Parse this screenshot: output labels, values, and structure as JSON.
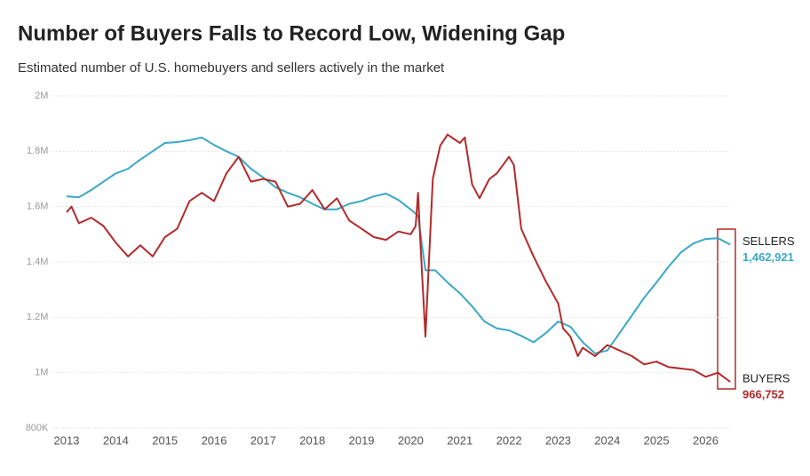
{
  "chart_data": {
    "type": "line",
    "title": "Number of Buyers Falls to Record Low, Widening Gap",
    "subtitle": "Estimated number of U.S. homebuyers and sellers actively in the market",
    "xlim": [
      2012.7,
      2026.75
    ],
    "xticks": [
      2013,
      2014,
      2015,
      2016,
      2017,
      2018,
      2019,
      2020,
      2021,
      2022,
      2023,
      2024,
      2025,
      2026
    ],
    "ylim": [
      800000,
      2000000
    ],
    "yticks": [
      {
        "value": 800000,
        "label": "800K"
      },
      {
        "value": 1000000,
        "label": "1M"
      },
      {
        "value": 1200000,
        "label": "1.2M"
      },
      {
        "value": 1400000,
        "label": "1.4M"
      },
      {
        "value": 1600000,
        "label": "1.6M"
      },
      {
        "value": 1800000,
        "label": "1.8M"
      },
      {
        "value": 2000000,
        "label": "2M"
      }
    ],
    "grid": true,
    "series": [
      {
        "name": "SELLERS",
        "color": "#3aa8c8",
        "x": [
          2013,
          2013.25,
          2013.5,
          2013.75,
          2014,
          2014.25,
          2014.5,
          2014.75,
          2015,
          2015.25,
          2015.5,
          2015.75,
          2016,
          2016.25,
          2016.5,
          2016.75,
          2017,
          2017.25,
          2017.5,
          2017.75,
          2018,
          2018.25,
          2018.5,
          2018.75,
          2019,
          2019.25,
          2019.5,
          2019.75,
          2020,
          2020.15,
          2020.3,
          2020.5,
          2020.75,
          2021,
          2021.25,
          2021.5,
          2021.75,
          2022,
          2022.25,
          2022.5,
          2022.75,
          2023,
          2023.25,
          2023.5,
          2023.75,
          2024,
          2024.25,
          2024.5,
          2024.75,
          2025,
          2025.25,
          2025.5,
          2025.75,
          2026,
          2026.25,
          2026.5
        ],
        "values": [
          1637000,
          1634000,
          1660000,
          1690000,
          1720000,
          1737000,
          1770000,
          1800000,
          1830000,
          1833000,
          1840000,
          1850000,
          1823000,
          1800000,
          1780000,
          1737000,
          1705000,
          1670000,
          1650000,
          1634000,
          1610000,
          1590000,
          1590000,
          1610000,
          1620000,
          1637000,
          1647000,
          1624000,
          1590000,
          1567000,
          1370000,
          1370000,
          1326000,
          1287000,
          1240000,
          1185000,
          1160000,
          1153000,
          1133000,
          1110000,
          1143000,
          1185000,
          1166000,
          1110000,
          1070000,
          1080000,
          1143000,
          1207000,
          1271000,
          1326000,
          1384000,
          1435000,
          1467000,
          1483000,
          1486000,
          1462921
        ],
        "value_labels": [
          null,
          null,
          null,
          null,
          null,
          null,
          null,
          null,
          null,
          null,
          null,
          null,
          null,
          null,
          null,
          null,
          null,
          null,
          null,
          null,
          null,
          null,
          null,
          null,
          null,
          null,
          null,
          null,
          null,
          null,
          null,
          null,
          null,
          null,
          null,
          null,
          null,
          null,
          null,
          null,
          null,
          null,
          null,
          null,
          null,
          null,
          null,
          null,
          null,
          null,
          null,
          null,
          null,
          null,
          null,
          "1,462,921"
        ]
      },
      {
        "name": "BUYERS",
        "color": "#b22a2a",
        "x": [
          2013,
          2013.1,
          2013.25,
          2013.5,
          2013.75,
          2014,
          2014.25,
          2014.5,
          2014.75,
          2015,
          2015.25,
          2015.5,
          2015.75,
          2016,
          2016.25,
          2016.5,
          2016.75,
          2017,
          2017.25,
          2017.5,
          2017.75,
          2018,
          2018.25,
          2018.5,
          2018.75,
          2019,
          2019.25,
          2019.5,
          2019.75,
          2020,
          2020.1,
          2020.15,
          2020.2,
          2020.3,
          2020.45,
          2020.6,
          2020.75,
          2021,
          2021.1,
          2021.25,
          2021.4,
          2021.6,
          2021.75,
          2022,
          2022.1,
          2022.25,
          2022.5,
          2022.75,
          2023,
          2023.1,
          2023.25,
          2023.4,
          2023.5,
          2023.75,
          2024,
          2024.25,
          2024.5,
          2024.75,
          2025,
          2025.25,
          2025.5,
          2025.75,
          2026,
          2026.25,
          2026.5
        ],
        "values": [
          1580000,
          1600000,
          1540000,
          1560000,
          1530000,
          1470000,
          1420000,
          1460000,
          1420000,
          1490000,
          1520000,
          1620000,
          1650000,
          1620000,
          1720000,
          1780000,
          1690000,
          1700000,
          1690000,
          1600000,
          1610000,
          1660000,
          1590000,
          1630000,
          1550000,
          1520000,
          1490000,
          1480000,
          1510000,
          1500000,
          1530000,
          1650000,
          1460000,
          1130000,
          1700000,
          1820000,
          1860000,
          1830000,
          1850000,
          1680000,
          1630000,
          1700000,
          1720000,
          1780000,
          1750000,
          1520000,
          1420000,
          1330000,
          1250000,
          1160000,
          1130000,
          1060000,
          1090000,
          1060000,
          1100000,
          1080000,
          1060000,
          1030000,
          1040000,
          1020000,
          1015000,
          1010000,
          985000,
          1000000,
          966752
        ],
        "value_labels": [
          null,
          null,
          null,
          null,
          null,
          null,
          null,
          null,
          null,
          null,
          null,
          null,
          null,
          null,
          null,
          null,
          null,
          null,
          null,
          null,
          null,
          null,
          null,
          null,
          null,
          null,
          null,
          null,
          null,
          null,
          null,
          null,
          null,
          null,
          null,
          null,
          null,
          null,
          null,
          null,
          null,
          null,
          null,
          null,
          null,
          null,
          null,
          null,
          null,
          null,
          null,
          null,
          null,
          null,
          null,
          null,
          null,
          null,
          null,
          null,
          null,
          null,
          null,
          null,
          "966,752"
        ]
      }
    ]
  }
}
